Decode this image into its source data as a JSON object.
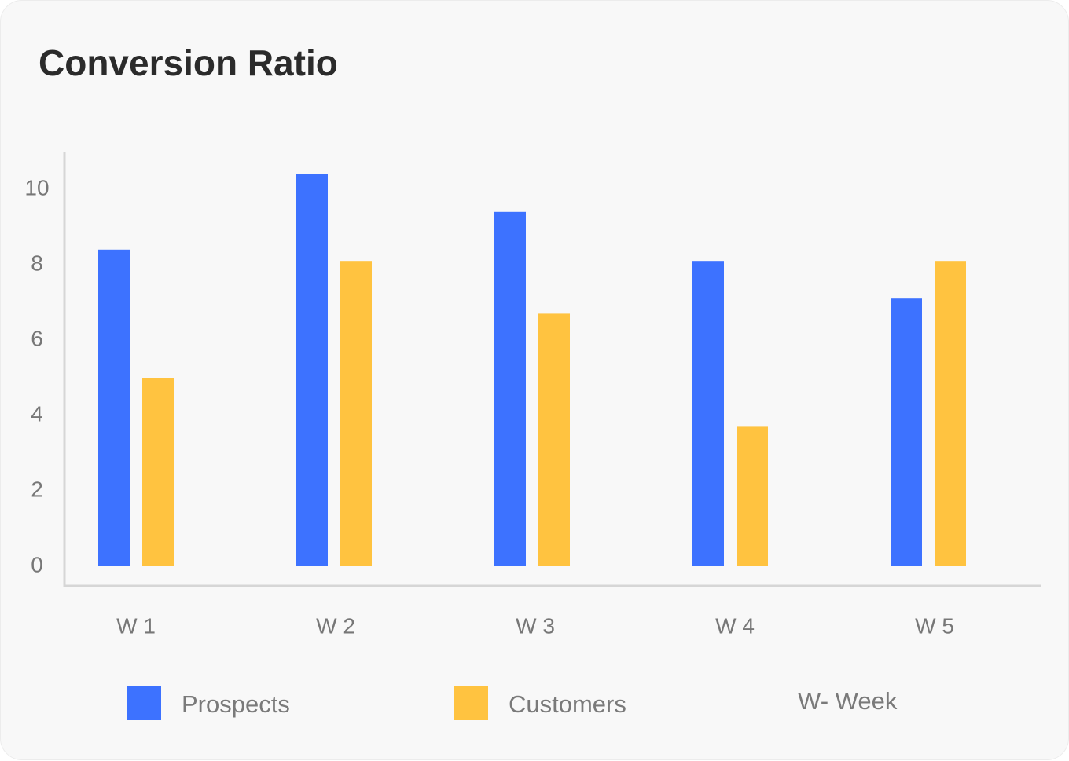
{
  "chart_data": {
    "type": "bar",
    "title": "Conversion Ratio",
    "categories": [
      "W 1",
      "W 2",
      "W 3",
      "W 4",
      "W 5"
    ],
    "series": [
      {
        "name": "Prospects",
        "color": "#3d72ff",
        "values": [
          8.4,
          10.4,
          9.4,
          8.1,
          7.1
        ]
      },
      {
        "name": "Customers",
        "color": "#ffc340",
        "values": [
          5.0,
          8.1,
          6.7,
          3.7,
          8.1
        ]
      }
    ],
    "yticks": [
      0,
      2,
      4,
      6,
      8,
      10
    ],
    "ylim": [
      0,
      10
    ],
    "xlabel": "",
    "ylabel": "",
    "grid": false,
    "legend_position": "bottom",
    "note": "W- Week"
  }
}
